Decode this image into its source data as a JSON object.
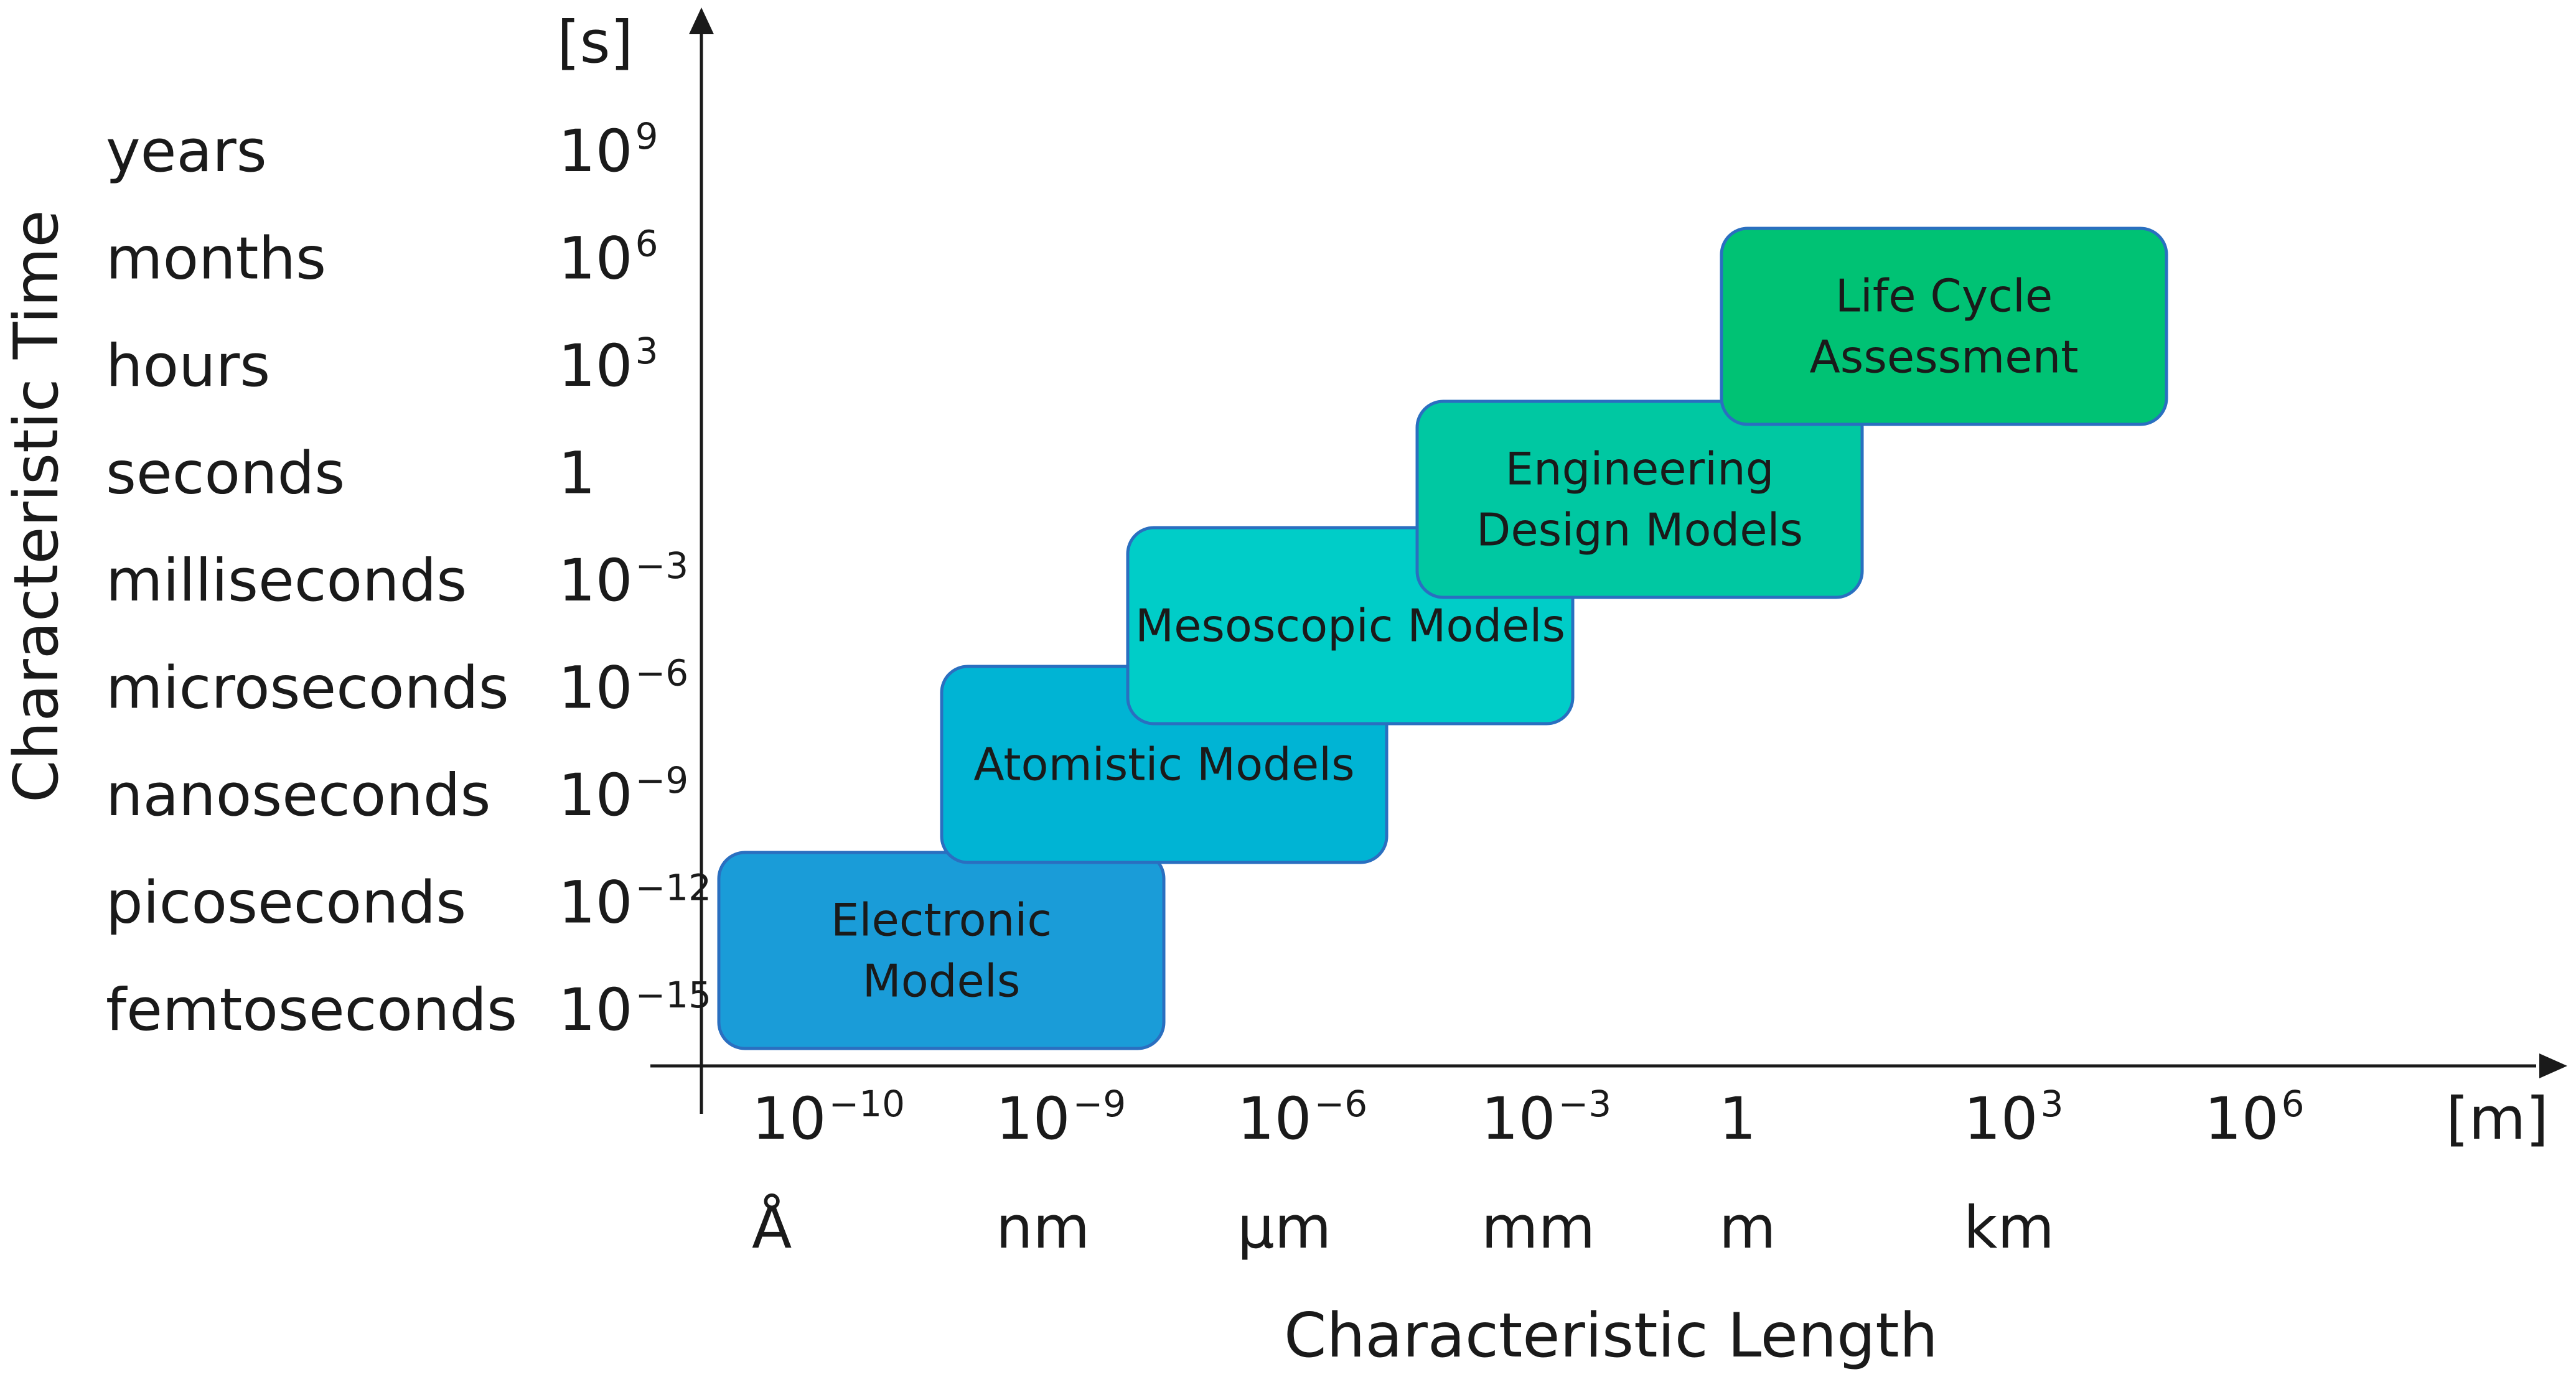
{
  "axes": {
    "y_title": "Characteristic Time",
    "y_unit": "[s]",
    "x_title": "Characteristic Length",
    "x_unit": "[m]"
  },
  "time_scale": [
    {
      "name": "years",
      "base": "10",
      "exp": "9"
    },
    {
      "name": "months",
      "base": "10",
      "exp": "6"
    },
    {
      "name": "hours",
      "base": "10",
      "exp": "3"
    },
    {
      "name": "seconds",
      "base": "1",
      "exp": ""
    },
    {
      "name": "milliseconds",
      "base": "10",
      "exp": "−3"
    },
    {
      "name": "microseconds",
      "base": "10",
      "exp": "−6"
    },
    {
      "name": "nanoseconds",
      "base": "10",
      "exp": "−9"
    },
    {
      "name": "picoseconds",
      "base": "10",
      "exp": "−12"
    },
    {
      "name": "femtoseconds",
      "base": "10",
      "exp": "−15"
    }
  ],
  "length_scale": [
    {
      "base": "10",
      "exp": "−10",
      "unit": "Å"
    },
    {
      "base": "10",
      "exp": "−9",
      "unit": "nm"
    },
    {
      "base": "10",
      "exp": "−6",
      "unit": "µm"
    },
    {
      "base": "10",
      "exp": "−3",
      "unit": "mm"
    },
    {
      "base": "1",
      "exp": "",
      "unit": "m"
    },
    {
      "base": "10",
      "exp": "3",
      "unit": "km"
    },
    {
      "base": "10",
      "exp": "6",
      "unit": ""
    }
  ],
  "models": [
    {
      "lines": [
        "Electronic",
        "Models"
      ],
      "color": "#1a9cd8"
    },
    {
      "lines": [
        "Atomistic Models"
      ],
      "color": "#00b4d4"
    },
    {
      "lines": [
        "Mesoscopic Models"
      ],
      "color": "#00cdc8"
    },
    {
      "lines": [
        "Engineering",
        "Design Models"
      ],
      "color": "#00c8a2"
    },
    {
      "lines": [
        "Life Cycle",
        "Assessment"
      ],
      "color": "#00c274"
    }
  ],
  "colors": {
    "axis": "#1a1a1a",
    "box_stroke": "#2a6fc0"
  }
}
